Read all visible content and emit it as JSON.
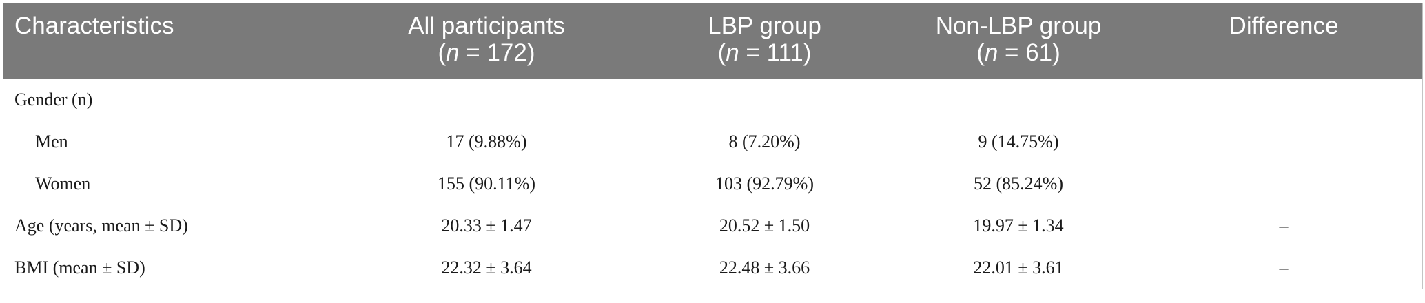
{
  "table": {
    "headers": [
      {
        "line1": "Characteristics",
        "n_label": "",
        "n_value": ""
      },
      {
        "line1": "All participants",
        "n_label": "n",
        "n_value": " = 172)"
      },
      {
        "line1": "LBP group",
        "n_label": "n",
        "n_value": " = 111)"
      },
      {
        "line1": "Non-LBP group",
        "n_label": "n",
        "n_value": " = 61)"
      },
      {
        "line1": "Difference",
        "n_label": "",
        "n_value": ""
      }
    ],
    "rows": [
      {
        "label": "Gender (n)",
        "indent": false,
        "all": "",
        "lbp": "",
        "nonlbp": "",
        "diff": ""
      },
      {
        "label": "Men",
        "indent": true,
        "all": "17 (9.88%)",
        "lbp": "8 (7.20%)",
        "nonlbp": "9 (14.75%)",
        "diff": ""
      },
      {
        "label": "Women",
        "indent": true,
        "all": "155 (90.11%)",
        "lbp": "103 (92.79%)",
        "nonlbp": "52 (85.24%)",
        "diff": ""
      },
      {
        "label": "Age (years, mean ± SD)",
        "indent": false,
        "all": "20.33 ± 1.47",
        "lbp": "20.52 ± 1.50",
        "nonlbp": "19.97 ± 1.34",
        "diff": "–"
      },
      {
        "label": "BMI (mean ± SD)",
        "indent": false,
        "all": "22.32 ± 3.64",
        "lbp": "22.48 ± 3.66",
        "nonlbp": "22.01 ± 3.61",
        "diff": "–"
      }
    ]
  }
}
